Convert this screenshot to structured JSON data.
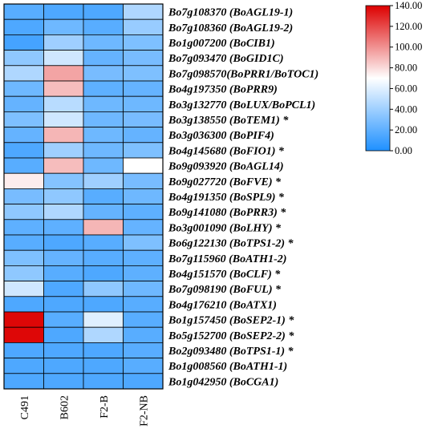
{
  "chart_data": {
    "type": "heatmap",
    "columns": [
      "C491",
      "B602",
      "F2-B",
      "F2-NB"
    ],
    "rows": [
      "Bo7g108370 (BoAGL19-1)",
      "Bo7g108360 (BoAGL19-2)",
      "Bo1g007200 (BoCIB1)",
      "Bo7g093470 (BoGID1C)",
      "Bo7g098570(BoPRR1/BoTOC1)",
      "Bo4g197350 (BoPRR9)",
      "Bo3g132770 (BoLUX/BoPCL1)",
      "Bo3g138550 (BoTEM1) *",
      "Bo3g036300 (BoPIF4)",
      "Bo4g145680 (BoFIO1) *",
      "Bo9g093920 (BoAGL14)",
      "Bo9g027720 (BoFVE) *",
      "Bo4g191350 (BoSPL9) *",
      "Bo9g141080 (BoPRR3) *",
      "Bo3g001090 (BoLHY) *",
      "Bo6g122130 (BoTPS1-2) *",
      "Bo7g115960 (BoATH1-2)",
      "Bo4g151570 (BoCLF) *",
      "Bo7g098190 (BoFUL) *",
      "Bo4g176210 (BoATX1)",
      "Bo1g157450 (BoSEP2-1) *",
      "Bo5g152700 (BoSEP2-2) *",
      "Bo2g093480 (BoTPS1-1) *",
      "Bo1g008560 (BoATH1-1)",
      "Bo1g042950 (BoCGA1)"
    ],
    "values": [
      [
        18,
        15,
        15,
        45
      ],
      [
        15,
        25,
        18,
        38
      ],
      [
        12,
        40,
        25,
        30
      ],
      [
        35,
        55,
        22,
        28
      ],
      [
        45,
        95,
        28,
        30
      ],
      [
        25,
        88,
        20,
        22
      ],
      [
        22,
        48,
        25,
        25
      ],
      [
        30,
        55,
        25,
        28
      ],
      [
        22,
        90,
        25,
        22
      ],
      [
        15,
        40,
        25,
        30
      ],
      [
        18,
        88,
        25,
        70
      ],
      [
        75,
        32,
        40,
        28
      ],
      [
        28,
        35,
        18,
        25
      ],
      [
        35,
        45,
        22,
        20
      ],
      [
        20,
        20,
        90,
        22
      ],
      [
        18,
        15,
        18,
        30
      ],
      [
        30,
        22,
        18,
        20
      ],
      [
        35,
        18,
        15,
        20
      ],
      [
        55,
        15,
        35,
        25
      ],
      [
        15,
        15,
        15,
        18
      ],
      [
        138,
        18,
        60,
        18
      ],
      [
        138,
        15,
        45,
        18
      ],
      [
        15,
        15,
        15,
        18
      ],
      [
        15,
        15,
        15,
        18
      ],
      [
        15,
        15,
        15,
        15
      ]
    ],
    "colorscale": {
      "min": 0,
      "max": 140,
      "colors": [
        "#1e90ff",
        "#ffffff",
        "#dd0000"
      ],
      "ticks": [
        "140.00",
        "120.00",
        "100.00",
        "80.00",
        "60.00",
        "40.00",
        "20.00",
        "0.00"
      ]
    }
  }
}
